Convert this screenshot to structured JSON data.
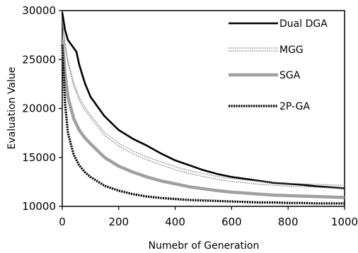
{
  "chart_data": {
    "type": "line",
    "xlabel": "Numebr of Generation",
    "ylabel": "Evaluation Value",
    "xlim": [
      0,
      1000
    ],
    "ylim": [
      10000,
      30000
    ],
    "xticks": [
      "0",
      "200",
      "400",
      "600",
      "800",
      "1000"
    ],
    "yticks": [
      "10000",
      "15000",
      "20000",
      "25000",
      "30000"
    ],
    "grid": false,
    "legend_position": "top-right",
    "series": [
      {
        "name": "Dual DGA",
        "style": "solid-thick",
        "color": "#000000",
        "x": [
          0,
          10,
          20,
          40,
          50,
          60,
          80,
          100,
          150,
          200,
          250,
          300,
          350,
          400,
          450,
          500,
          550,
          600,
          650,
          700,
          750,
          800,
          850,
          900,
          950,
          1000
        ],
        "y": [
          29800,
          28000,
          27000,
          26200,
          25800,
          24500,
          22600,
          21200,
          19200,
          17800,
          16900,
          16200,
          15400,
          14700,
          14200,
          13700,
          13300,
          13000,
          12800,
          12600,
          12400,
          12300,
          12200,
          12050,
          11950,
          11850
        ]
      },
      {
        "name": "MGG",
        "style": "dotted-band",
        "color": "#7a7a7a",
        "x": [
          0,
          10,
          20,
          40,
          60,
          80,
          100,
          150,
          200,
          250,
          300,
          350,
          400,
          450,
          500,
          550,
          600,
          650,
          700,
          750,
          800,
          850,
          900,
          950,
          1000
        ],
        "y": [
          29000,
          26500,
          24800,
          22500,
          21000,
          20000,
          19200,
          17400,
          16300,
          15500,
          14900,
          14400,
          13900,
          13500,
          13200,
          12900,
          12700,
          12550,
          12400,
          12300,
          12200,
          12150,
          12100,
          12050,
          12000
        ]
      },
      {
        "name": "SGA",
        "style": "solid-gray-thick",
        "color": "#a0a0a0",
        "x": [
          0,
          10,
          20,
          40,
          60,
          80,
          100,
          150,
          200,
          250,
          300,
          350,
          400,
          450,
          500,
          550,
          600,
          650,
          700,
          750,
          800,
          850,
          900,
          950,
          1000
        ],
        "y": [
          27000,
          23500,
          21200,
          19000,
          17800,
          17000,
          16400,
          15000,
          14100,
          13500,
          13000,
          12600,
          12300,
          12000,
          11800,
          11600,
          11450,
          11350,
          11250,
          11150,
          11100,
          11050,
          11000,
          10950,
          10900
        ]
      },
      {
        "name": "2P-GA",
        "style": "circle-chain",
        "color": "#000000",
        "x": [
          0,
          10,
          20,
          40,
          60,
          80,
          100,
          150,
          200,
          250,
          300,
          350,
          400,
          450,
          500,
          550,
          600,
          650,
          700,
          750,
          800,
          850,
          900,
          950,
          1000
        ],
        "y": [
          26500,
          20500,
          17500,
          15300,
          14200,
          13500,
          13000,
          12100,
          11600,
          11250,
          11000,
          10850,
          10750,
          10650,
          10600,
          10550,
          10500,
          10450,
          10400,
          10400,
          10350,
          10350,
          10300,
          10300,
          10300
        ]
      }
    ]
  }
}
